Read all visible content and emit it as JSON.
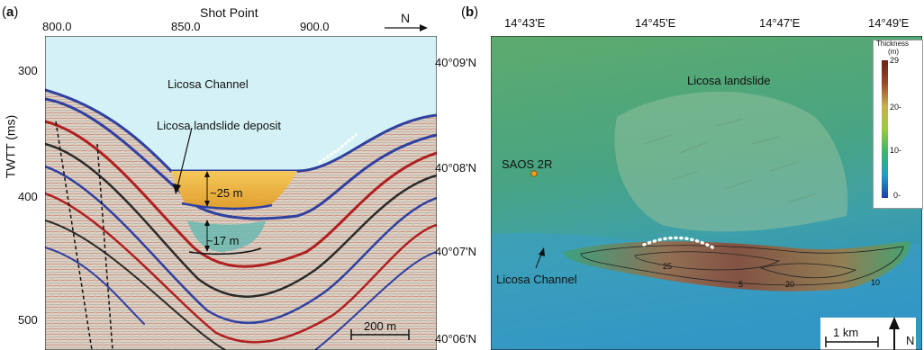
{
  "panel_a": {
    "letter": "a",
    "top_axis_title": "Shot Point",
    "top_ticks": [
      "800.0",
      "850.0",
      "900.0"
    ],
    "y_axis_title": "TWTT (ms)",
    "y_ticks": [
      "300",
      "400",
      "500"
    ],
    "north_label": "N",
    "labels": {
      "channel": "Licosa Channel",
      "deposit": "Licosa landslide deposit",
      "thick25": "~25 m",
      "thick17": "~17 m",
      "scale": "200 m"
    }
  },
  "panel_b": {
    "letter": "b",
    "lon_ticks": [
      "14°43'E",
      "14°45'E",
      "14°47'E",
      "14°49'E"
    ],
    "lat_ticks": [
      "40°09'N",
      "40°08'N",
      "40°07'N",
      "40°06'N"
    ],
    "labels": {
      "landslide": "Licosa landslide",
      "site": "SAOS 2R",
      "channel": "Licosa Channel",
      "scale": "1 km",
      "north": "N"
    },
    "contours": [
      "25",
      "5",
      "20",
      "10"
    ],
    "colorbar": {
      "title_line1": "Thickness",
      "title_line2": "(m)",
      "ticks": [
        "29",
        "20-",
        "10-",
        "0-"
      ],
      "colors": [
        "#1a3fa8",
        "#1fa0c8",
        "#37b86a",
        "#9acb3a",
        "#c9b04a",
        "#9c4a2a",
        "#6e1e14"
      ]
    },
    "colors": {
      "site_marker": "#f2a21a",
      "seafloor_high": "#4fa86e",
      "seafloor_low": "#2b8fb8"
    }
  }
}
